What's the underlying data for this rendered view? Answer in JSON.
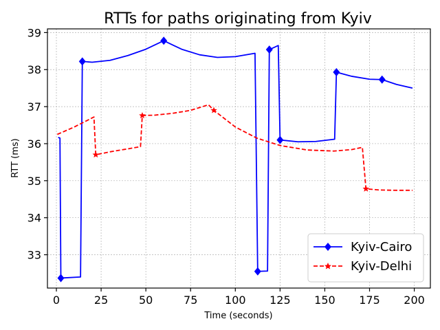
{
  "chart_data": {
    "type": "line",
    "title": "RTTs for paths originating from Kyiv",
    "xlabel": "Time (seconds)",
    "ylabel": "RTT (ms)",
    "xlim": [
      -5,
      209
    ],
    "ylim": [
      32.1,
      39.1
    ],
    "xticks": [
      0,
      25,
      50,
      75,
      100,
      125,
      150,
      175,
      200
    ],
    "yticks": [
      33,
      34,
      35,
      36,
      37,
      38,
      39
    ],
    "grid": true,
    "legend_position": "lower-right",
    "series": [
      {
        "name": "Kyiv-Cairo",
        "color": "#0000ff",
        "style": "solid",
        "marker": "diamond",
        "points": [
          [
            1,
            36.17
          ],
          [
            2,
            36.15
          ],
          [
            2.5,
            32.37
          ],
          [
            13.5,
            32.4
          ],
          [
            14.5,
            38.22
          ],
          [
            20,
            38.2
          ],
          [
            30,
            38.25
          ],
          [
            40,
            38.38
          ],
          [
            50,
            38.55
          ],
          [
            60,
            38.78
          ],
          [
            70,
            38.55
          ],
          [
            80,
            38.4
          ],
          [
            90,
            38.33
          ],
          [
            100,
            38.35
          ],
          [
            111,
            38.44
          ],
          [
            112.5,
            32.55
          ],
          [
            118,
            32.56
          ],
          [
            119,
            38.54
          ],
          [
            124,
            38.65
          ],
          [
            125,
            36.1
          ],
          [
            135,
            36.05
          ],
          [
            145,
            36.06
          ],
          [
            155.5,
            36.12
          ],
          [
            156.5,
            37.93
          ],
          [
            165,
            37.82
          ],
          [
            175,
            37.74
          ],
          [
            182,
            37.73
          ],
          [
            190,
            37.6
          ],
          [
            199,
            37.5
          ]
        ],
        "markers": [
          [
            2.5,
            32.37
          ],
          [
            14.5,
            38.22
          ],
          [
            60,
            38.78
          ],
          [
            112.5,
            32.55
          ],
          [
            119,
            38.54
          ],
          [
            125,
            36.1
          ],
          [
            156.5,
            37.93
          ],
          [
            182,
            37.73
          ]
        ]
      },
      {
        "name": "Kyiv-Delhi",
        "color": "#ff0000",
        "style": "dashed",
        "marker": "star",
        "points": [
          [
            0.5,
            36.25
          ],
          [
            10,
            36.45
          ],
          [
            21,
            36.72
          ],
          [
            22,
            35.7
          ],
          [
            30,
            35.78
          ],
          [
            40,
            35.86
          ],
          [
            47,
            35.92
          ],
          [
            48,
            36.76
          ],
          [
            55,
            36.77
          ],
          [
            65,
            36.82
          ],
          [
            75,
            36.9
          ],
          [
            85,
            37.05
          ],
          [
            88,
            36.9
          ],
          [
            100,
            36.45
          ],
          [
            112,
            36.15
          ],
          [
            125,
            35.95
          ],
          [
            140,
            35.83
          ],
          [
            155,
            35.8
          ],
          [
            165,
            35.84
          ],
          [
            171,
            35.9
          ],
          [
            173,
            34.78
          ],
          [
            180,
            34.75
          ],
          [
            190,
            34.74
          ],
          [
            199,
            34.74
          ]
        ],
        "markers": [
          [
            22,
            35.7
          ],
          [
            48,
            36.76
          ],
          [
            88,
            36.9
          ],
          [
            173,
            34.78
          ]
        ]
      }
    ]
  }
}
